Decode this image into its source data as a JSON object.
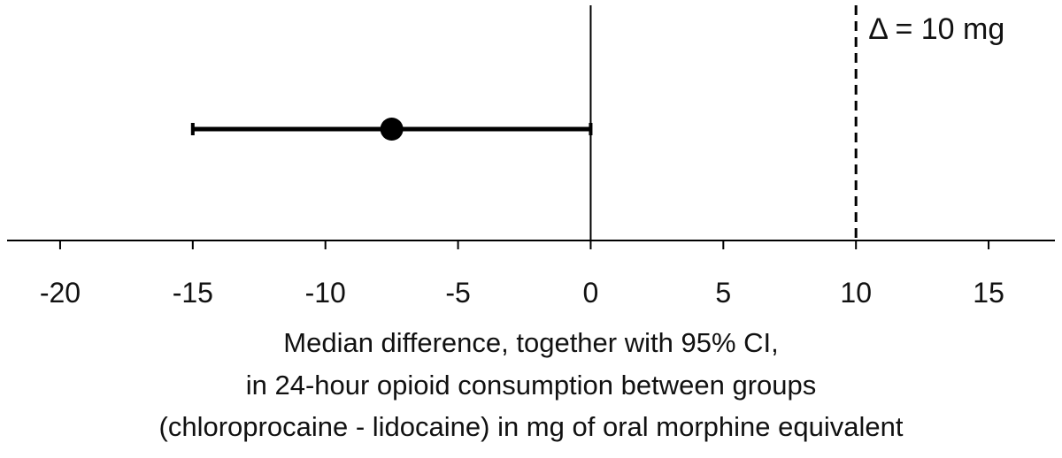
{
  "chart_data": {
    "type": "scatter",
    "title": "",
    "xlabel": [
      "Median difference, together with 95% CI,",
      "in 24-hour opioid consumption between groups",
      "(chloroprocaine - lidocaine) in mg of oral morphine equivalent"
    ],
    "ylabel": "",
    "xlim": [
      -22,
      17.5
    ],
    "xticks": [
      -20,
      -15,
      -10,
      -5,
      0,
      5,
      10,
      15
    ],
    "xtick_labels": [
      "-20",
      "-15",
      "-10",
      "-5",
      "0",
      "5",
      "10",
      "15"
    ],
    "grid": false,
    "legend": "none",
    "points": [
      {
        "x": -7.5,
        "ci_low": -15,
        "ci_high": 0
      }
    ],
    "reference_lines": [
      {
        "x": 0,
        "style": "solid",
        "label": ""
      },
      {
        "x": 10,
        "style": "dashed",
        "label": "Δ = 10 mg"
      }
    ],
    "colors": {
      "marks": "#000000",
      "text": "#111111",
      "background": "#ffffff"
    }
  }
}
